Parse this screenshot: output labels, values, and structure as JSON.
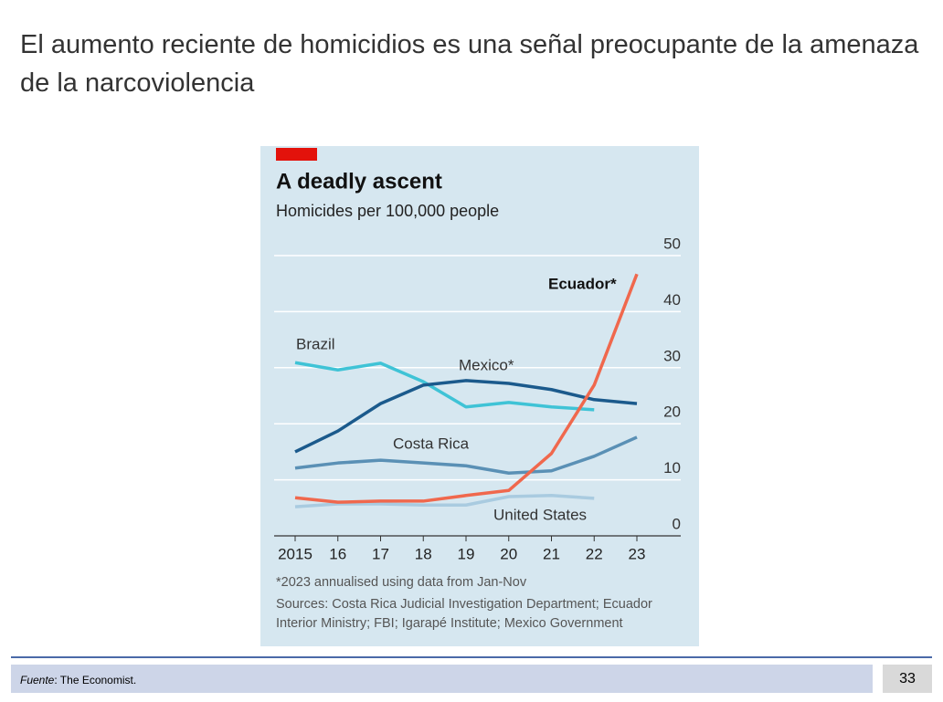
{
  "slide": {
    "title": "El aumento reciente de homicidios es una señal preocupante de la amenaza de la narcoviolencia",
    "source_label": "Fuente",
    "source_text": ": The Economist.",
    "page_number": 33
  },
  "chart_data": {
    "type": "line",
    "title": "A deadly ascent",
    "subtitle": "Homicides per 100,000 people",
    "categories": [
      "2015",
      "16",
      "17",
      "18",
      "19",
      "20",
      "21",
      "22",
      "23"
    ],
    "series": [
      {
        "name": "Brazil",
        "color": "#3fc3d6",
        "values": [
          30.9,
          29.6,
          30.8,
          27.5,
          23.0,
          23.8,
          23.0,
          22.5,
          null
        ]
      },
      {
        "name": "Mexico*",
        "color": "#1b5a8c",
        "values": [
          15.0,
          18.7,
          23.6,
          26.9,
          27.7,
          27.2,
          26.1,
          24.3,
          23.6
        ]
      },
      {
        "name": "Costa Rica",
        "color": "#5a90b5",
        "values": [
          12.1,
          13.0,
          13.5,
          13.0,
          12.5,
          11.2,
          11.6,
          14.2,
          17.6
        ]
      },
      {
        "name": "United States",
        "color": "#a9cbe0",
        "values": [
          5.2,
          5.7,
          5.7,
          5.5,
          5.5,
          7.0,
          7.2,
          6.7,
          null
        ]
      },
      {
        "name": "Ecuador*",
        "color": "#f0684d",
        "values": [
          6.8,
          6.0,
          6.2,
          6.2,
          7.2,
          8.1,
          14.7,
          26.9,
          46.7
        ]
      }
    ],
    "ylim": [
      0,
      50
    ],
    "yticks": [
      0,
      10,
      20,
      30,
      40,
      50
    ],
    "grid": true,
    "note": "*2023 annualised using data from Jan-Nov",
    "sources": "Sources: Costa Rica Judicial Investigation Department; Ecuador Interior Ministry; FBI; Igarapé Institute; Mexico Government"
  }
}
